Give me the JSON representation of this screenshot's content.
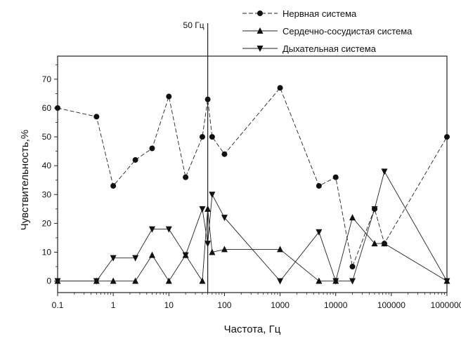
{
  "chart_data": {
    "type": "line",
    "title": "",
    "xlabel": "Частота, Гц",
    "ylabel": "Чувствительность,%",
    "x_scale": "log",
    "xlim": [
      0.1,
      1000000
    ],
    "ylim": [
      -4,
      78
    ],
    "x_ticks": [
      0.1,
      1,
      10,
      100,
      1000,
      10000,
      100000,
      1000000
    ],
    "x_tick_labels": [
      "0.1",
      "1",
      "10",
      "100",
      "1000",
      "10000",
      "100000",
      "1000000"
    ],
    "y_ticks": [
      0,
      10,
      20,
      30,
      40,
      50,
      60,
      70
    ],
    "y_tick_labels": [
      "0",
      "10",
      "20",
      "30",
      "40",
      "50",
      "60",
      "70"
    ],
    "grid": false,
    "legend_position": "top-right",
    "annotation": {
      "label": "50 Гц",
      "x": 50
    },
    "series": [
      {
        "name": "Нервная система",
        "marker": "circle",
        "x": [
          0.1,
          0.5,
          1,
          2.5,
          5,
          10,
          20,
          40,
          50,
          60,
          100,
          1000,
          5000,
          10000,
          20000,
          50000,
          75000,
          1000000
        ],
        "y": [
          60,
          57,
          33,
          42,
          46,
          64,
          36,
          50,
          63,
          50,
          44,
          67,
          33,
          36,
          5,
          25,
          13,
          50
        ]
      },
      {
        "name": "Сердечно-сосудистая система",
        "marker": "triangle-up",
        "x": [
          0.1,
          0.5,
          1,
          2.5,
          5,
          10,
          20,
          40,
          50,
          60,
          100,
          1000,
          5000,
          10000,
          20000,
          50000,
          75000,
          1000000
        ],
        "y": [
          0,
          0,
          0,
          0,
          9,
          0,
          9,
          0,
          25,
          10,
          11,
          11,
          0,
          0,
          22,
          13,
          13,
          0
        ]
      },
      {
        "name": "Дыхательная система",
        "marker": "triangle-down",
        "x": [
          0.1,
          0.5,
          1,
          2.5,
          5,
          10,
          20,
          40,
          50,
          60,
          100,
          1000,
          5000,
          10000,
          20000,
          50000,
          75000,
          1000000
        ],
        "y": [
          0,
          0,
          8,
          8,
          18,
          18,
          9,
          25,
          13,
          30,
          22,
          0,
          17,
          0,
          0,
          25,
          38,
          0
        ]
      }
    ]
  }
}
